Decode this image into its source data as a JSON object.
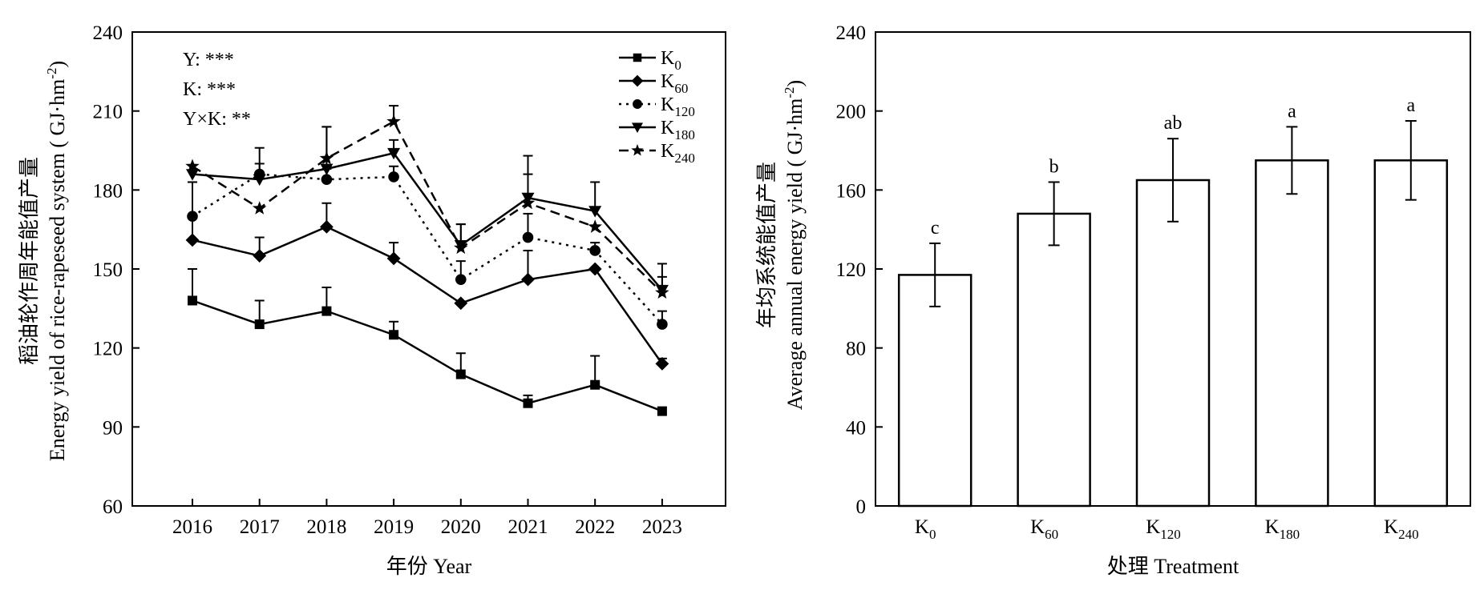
{
  "chart_data": [
    {
      "type": "line",
      "categories": [
        "2016",
        "2017",
        "2018",
        "2019",
        "2020",
        "2021",
        "2022",
        "2023"
      ],
      "ylim": [
        60,
        240
      ],
      "yticks": [
        60,
        90,
        120,
        150,
        180,
        210,
        240
      ],
      "xlabel": "年份 Year",
      "ylabel_cn": "稻油轮作周年能值产量",
      "ylabel_en": "Energy yield of rice-rapeseed system",
      "ylabel_unit": "( GJ·hm",
      "ylabel_unit_sup": "-2",
      "ylabel_unit_end": ")",
      "annotations": [
        "Y: ***",
        "K: ***",
        "Y×K: **"
      ],
      "legend_position": "top-right",
      "series": [
        {
          "name": "K",
          "sub": "0",
          "marker": "square",
          "dash": "solid",
          "values": [
            138,
            129,
            134,
            125,
            110,
            99,
            106,
            96
          ],
          "err": [
            12,
            9,
            9,
            5,
            8,
            3,
            11,
            0
          ]
        },
        {
          "name": "K",
          "sub": "60",
          "marker": "diamond",
          "dash": "solid",
          "values": [
            161,
            155,
            166,
            154,
            137,
            146,
            150,
            114
          ],
          "err": [
            22,
            7,
            9,
            6,
            0,
            11,
            0,
            2
          ]
        },
        {
          "name": "K",
          "sub": "120",
          "marker": "circle",
          "dash": "dotted",
          "values": [
            170,
            186,
            184,
            185,
            146,
            162,
            157,
            129
          ],
          "err": [
            13,
            4,
            4,
            4,
            7,
            9,
            3,
            5
          ]
        },
        {
          "name": "K",
          "sub": "180",
          "marker": "triangle",
          "dash": "solid",
          "values": [
            186,
            184,
            188,
            194,
            159,
            177,
            172,
            142
          ],
          "err": [
            0,
            12,
            16,
            5,
            8,
            16,
            11,
            10
          ]
        },
        {
          "name": "K",
          "sub": "240",
          "marker": "star",
          "dash": "dashed",
          "values": [
            189,
            173,
            192,
            206,
            158,
            175,
            166,
            141
          ],
          "err": [
            0,
            0,
            12,
            6,
            9,
            11,
            0,
            6
          ]
        }
      ]
    },
    {
      "type": "bar",
      "categories": [
        {
          "base": "K",
          "sub": "0"
        },
        {
          "base": "K",
          "sub": "60"
        },
        {
          "base": "K",
          "sub": "120"
        },
        {
          "base": "K",
          "sub": "180"
        },
        {
          "base": "K",
          "sub": "240"
        }
      ],
      "values": [
        117,
        148,
        165,
        175,
        175
      ],
      "err": [
        16,
        16,
        21,
        17,
        20
      ],
      "letters": [
        "c",
        "b",
        "ab",
        "a",
        "a"
      ],
      "ylim": [
        0,
        240
      ],
      "yticks": [
        0,
        40,
        80,
        120,
        160,
        200,
        240
      ],
      "xlabel": "处理 Treatment",
      "ylabel_cn": "年均系统能值产量",
      "ylabel_en": "Average annual energy yield",
      "ylabel_unit": "( GJ·hm",
      "ylabel_unit_sup": "-2",
      "ylabel_unit_end": ")"
    }
  ]
}
